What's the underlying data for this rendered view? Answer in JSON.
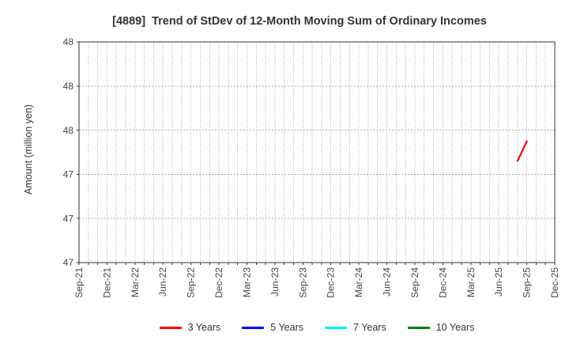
{
  "chart_data": {
    "type": "line",
    "title": "[4889]  Trend of StDev of 12-Month Moving Sum of Ordinary Incomes",
    "ylabel": "Amount (million yen)",
    "xlabel": "",
    "ylim": [
      47.0,
      48.0
    ],
    "y_ticks": [
      {
        "value": 48.0,
        "label": "48"
      },
      {
        "value": 47.8,
        "label": "48"
      },
      {
        "value": 47.6,
        "label": "48"
      },
      {
        "value": 47.4,
        "label": "47"
      },
      {
        "value": 47.2,
        "label": "47"
      },
      {
        "value": 47.0,
        "label": "47"
      }
    ],
    "x_axis": {
      "start": "Sep-21",
      "end": "Dec-25",
      "months_total": 51,
      "tick_every_months": 3,
      "tick_labels": [
        "Sep-21",
        "Dec-21",
        "Mar-22",
        "Jun-22",
        "Sep-22",
        "Dec-22",
        "Mar-23",
        "Jun-23",
        "Sep-23",
        "Dec-23",
        "Mar-24",
        "Jun-24",
        "Sep-24",
        "Dec-24",
        "Mar-25",
        "Jun-25",
        "Sep-25",
        "Dec-25"
      ]
    },
    "grid": {
      "color": "#aaaaaa",
      "vertical": "monthly dotted",
      "horizontal": "dotted at y ticks"
    },
    "legend": {
      "position": "bottom-center",
      "entries": [
        {
          "label": "3 Years",
          "color": "#ff0000"
        },
        {
          "label": "5 Years",
          "color": "#0000ff"
        },
        {
          "label": "7 Years",
          "color": "#00eeee"
        },
        {
          "label": "10 Years",
          "color": "#008000"
        }
      ]
    },
    "series": [
      {
        "name": "3 Years",
        "color": "#ff0000",
        "points": [
          {
            "month": "Aug-25",
            "month_index": 47,
            "value": 47.46
          },
          {
            "month": "Sep-25",
            "month_index": 48,
            "value": 47.55
          }
        ]
      },
      {
        "name": "5 Years",
        "color": "#0000ff",
        "points": []
      },
      {
        "name": "7 Years",
        "color": "#00eeee",
        "points": []
      },
      {
        "name": "10 Years",
        "color": "#008000",
        "points": []
      }
    ]
  },
  "style": {
    "axis_color": "#333333",
    "tick_text_color": "#444444",
    "title_color": "#333333",
    "background": "#ffffff"
  }
}
